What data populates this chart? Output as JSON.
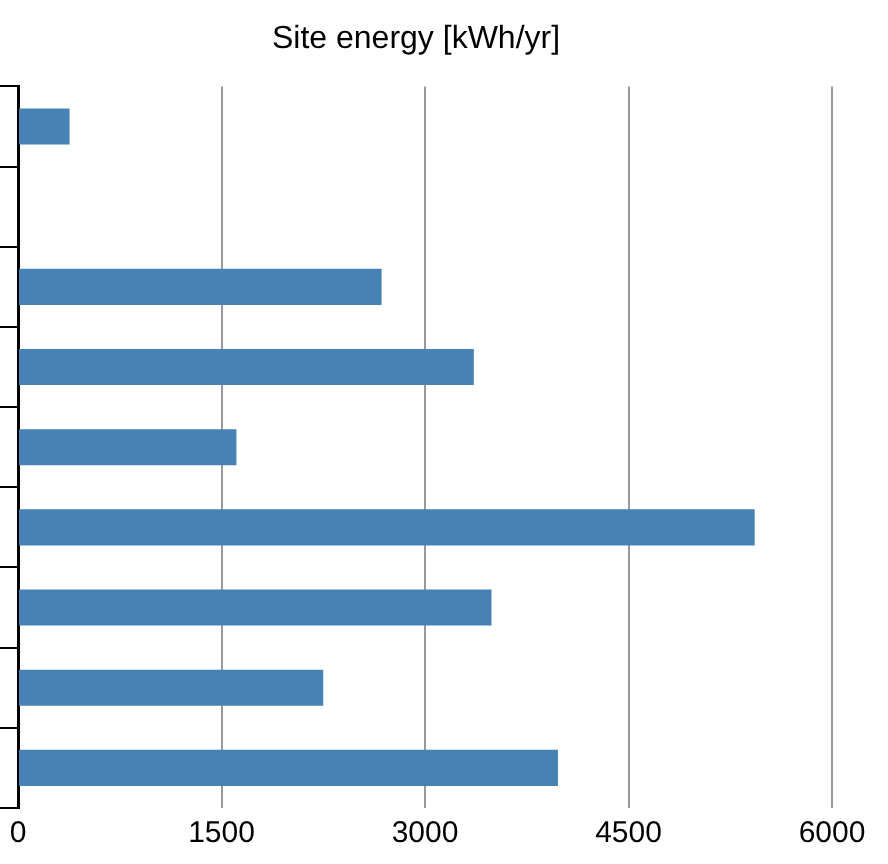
{
  "chart_data": {
    "type": "bar",
    "orientation": "horizontal",
    "title": "Site energy [kWh/yr]",
    "categories": [
      null,
      null,
      null,
      null,
      null,
      null,
      null,
      null,
      null
    ],
    "values": [
      380,
      null,
      2680,
      3360,
      1610,
      5430,
      3490,
      2250,
      3980
    ],
    "color": "#4682b4",
    "xlim": [
      0,
      6000
    ],
    "xticks": [
      0,
      1500,
      3000,
      4500,
      6000
    ],
    "grid": "x",
    "tick_labels": "x"
  }
}
